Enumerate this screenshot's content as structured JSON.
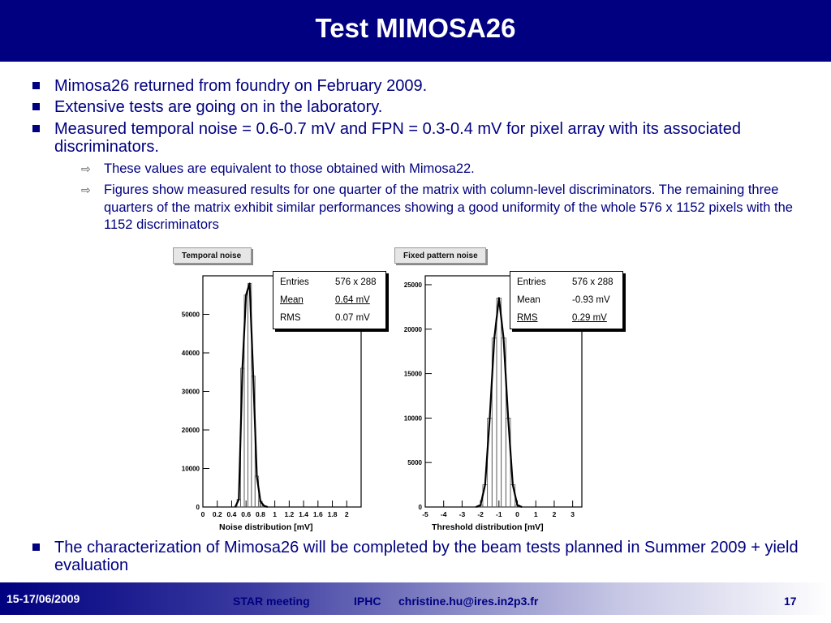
{
  "slide": {
    "title": "Test MIMOSA26",
    "bullets": [
      "Mimosa26 returned from foundry on February 2009.",
      "Extensive tests are going on in the laboratory.",
      "Measured temporal noise = 0.6-0.7 mV and FPN = 0.3-0.4 mV for pixel array with its associated discriminators."
    ],
    "sub_bullets": [
      "These values are equivalent to those obtained with Mimosa22.",
      "Figures show measured results for one quarter of the matrix with column-level discriminators. The remaining three quarters of the matrix exhibit similar performances showing a good uniformity of the whole 576 x 1152 pixels with the 1152 discriminators"
    ],
    "final_bullet": "The characterization of Mimosa26 will be completed by the beam tests planned in Summer 2009 + yield evaluation"
  },
  "chart_data": [
    {
      "type": "bar",
      "title": "Temporal noise",
      "xlabel": "Noise distribution [mV]",
      "xlim": [
        0,
        2.2
      ],
      "ylim": [
        0,
        60000
      ],
      "x_ticks": [
        "0",
        "0.2",
        "0.4",
        "0.6",
        "0.8",
        "1",
        "1.2",
        "1.4",
        "1.6",
        "1.8",
        "2"
      ],
      "y_ticks": [
        "0",
        "10000",
        "20000",
        "30000",
        "40000",
        "50000"
      ],
      "x": [
        0.5,
        0.55,
        0.6,
        0.65,
        0.7,
        0.75,
        0.8,
        0.85
      ],
      "values": [
        2000,
        36000,
        55000,
        58000,
        34000,
        8000,
        1500,
        300
      ],
      "stats": {
        "entries_label": "Entries",
        "entries": "576 x 288",
        "mean_label": "Mean",
        "mean": "0.64 mV",
        "rms_label": "RMS",
        "rms": "0.07 mV"
      }
    },
    {
      "type": "bar",
      "title": "Fixed pattern noise",
      "xlabel": "Threshold distribution [mV]",
      "xlim": [
        -5,
        3.5
      ],
      "ylim": [
        0,
        26000
      ],
      "x_ticks": [
        "-5",
        "-4",
        "-3",
        "-2",
        "-1",
        "0",
        "1",
        "2",
        "3"
      ],
      "y_ticks": [
        "0",
        "5000",
        "10000",
        "15000",
        "20000",
        "25000"
      ],
      "x": [
        -2.0,
        -1.75,
        -1.5,
        -1.25,
        -1.0,
        -0.75,
        -0.5,
        -0.25,
        0.0
      ],
      "values": [
        200,
        2500,
        10000,
        19000,
        23500,
        19000,
        10000,
        2500,
        200
      ],
      "stats": {
        "entries_label": "Entries",
        "entries": "576 x 288",
        "mean_label": "Mean",
        "mean": "-0.93 mV",
        "rms_label": "RMS",
        "rms": "0.29 mV"
      }
    }
  ],
  "footer": {
    "date": "15-17/06/2009",
    "meeting": "STAR meeting",
    "institute": "IPHC",
    "email": "christine.hu@ires.in2p3.fr",
    "page": "17"
  }
}
